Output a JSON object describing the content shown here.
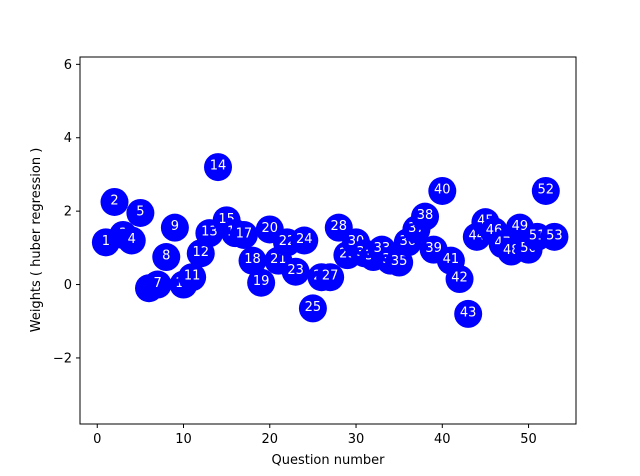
{
  "chart_data": {
    "type": "scatter",
    "title": "",
    "xlabel": "Question number",
    "ylabel": "Weights ( huber regression )",
    "xlim": [
      -2,
      55.5
    ],
    "ylim": [
      -3.8,
      6.2
    ],
    "xticks": [
      "0",
      "10",
      "20",
      "30",
      "40",
      "50"
    ],
    "xtick_values": [
      0,
      10,
      20,
      30,
      40,
      50
    ],
    "yticks": [
      "−2",
      "0",
      "2",
      "4",
      "6"
    ],
    "ytick_values": [
      -2,
      0,
      2,
      4,
      6
    ],
    "grid": false,
    "marker_color": "#0000ff",
    "label_color": "#ffffff",
    "points": [
      {
        "label": "1",
        "x": 1,
        "y": 1.15
      },
      {
        "label": "2",
        "x": 2,
        "y": 2.25
      },
      {
        "label": "3",
        "x": 3,
        "y": 1.35
      },
      {
        "label": "4",
        "x": 4,
        "y": 1.2
      },
      {
        "label": "5",
        "x": 5,
        "y": 1.95
      },
      {
        "label": "6",
        "x": 6,
        "y": -0.1
      },
      {
        "label": "7",
        "x": 7,
        "y": 0.0
      },
      {
        "label": "8",
        "x": 8,
        "y": 0.75
      },
      {
        "label": "9",
        "x": 9,
        "y": 1.55
      },
      {
        "label": "10",
        "x": 10,
        "y": 0.0
      },
      {
        "label": "11",
        "x": 11,
        "y": 0.2
      },
      {
        "label": "12",
        "x": 12,
        "y": 0.85
      },
      {
        "label": "13",
        "x": 13,
        "y": 1.4
      },
      {
        "label": "14",
        "x": 14,
        "y": 3.2
      },
      {
        "label": "15",
        "x": 15,
        "y": 1.75
      },
      {
        "label": "16",
        "x": 16,
        "y": 1.4
      },
      {
        "label": "17",
        "x": 17,
        "y": 1.35
      },
      {
        "label": "18",
        "x": 18,
        "y": 0.65
      },
      {
        "label": "19",
        "x": 19,
        "y": 0.05
      },
      {
        "label": "20",
        "x": 20,
        "y": 1.5
      },
      {
        "label": "21",
        "x": 21,
        "y": 0.65
      },
      {
        "label": "22",
        "x": 22,
        "y": 1.15
      },
      {
        "label": "23",
        "x": 23,
        "y": 0.35
      },
      {
        "label": "24",
        "x": 24,
        "y": 1.2
      },
      {
        "label": "25",
        "x": 25,
        "y": -0.65
      },
      {
        "label": "26",
        "x": 26,
        "y": 0.2
      },
      {
        "label": "27",
        "x": 27,
        "y": 0.2
      },
      {
        "label": "28",
        "x": 28,
        "y": 1.55
      },
      {
        "label": "29",
        "x": 29,
        "y": 0.8
      },
      {
        "label": "30",
        "x": 30,
        "y": 1.15
      },
      {
        "label": "31",
        "x": 31,
        "y": 0.85
      },
      {
        "label": "32",
        "x": 32,
        "y": 0.75
      },
      {
        "label": "33",
        "x": 33,
        "y": 0.95
      },
      {
        "label": "34",
        "x": 34,
        "y": 0.65
      },
      {
        "label": "35",
        "x": 35,
        "y": 0.6
      },
      {
        "label": "36",
        "x": 36,
        "y": 1.15
      },
      {
        "label": "37",
        "x": 37,
        "y": 1.5
      },
      {
        "label": "38",
        "x": 38,
        "y": 1.85
      },
      {
        "label": "39",
        "x": 39,
        "y": 0.95
      },
      {
        "label": "40",
        "x": 40,
        "y": 2.55
      },
      {
        "label": "41",
        "x": 41,
        "y": 0.65
      },
      {
        "label": "42",
        "x": 42,
        "y": 0.15
      },
      {
        "label": "43",
        "x": 43,
        "y": -0.8
      },
      {
        "label": "44",
        "x": 44,
        "y": 1.3
      },
      {
        "label": "45",
        "x": 45,
        "y": 1.7
      },
      {
        "label": "46",
        "x": 46,
        "y": 1.45
      },
      {
        "label": "47",
        "x": 47,
        "y": 1.1
      },
      {
        "label": "48",
        "x": 48,
        "y": 0.9
      },
      {
        "label": "49",
        "x": 49,
        "y": 1.55
      },
      {
        "label": "50",
        "x": 50,
        "y": 0.95
      },
      {
        "label": "51",
        "x": 51,
        "y": 1.3
      },
      {
        "label": "52",
        "x": 52,
        "y": 2.55
      },
      {
        "label": "53",
        "x": 53,
        "y": 1.3
      }
    ]
  }
}
